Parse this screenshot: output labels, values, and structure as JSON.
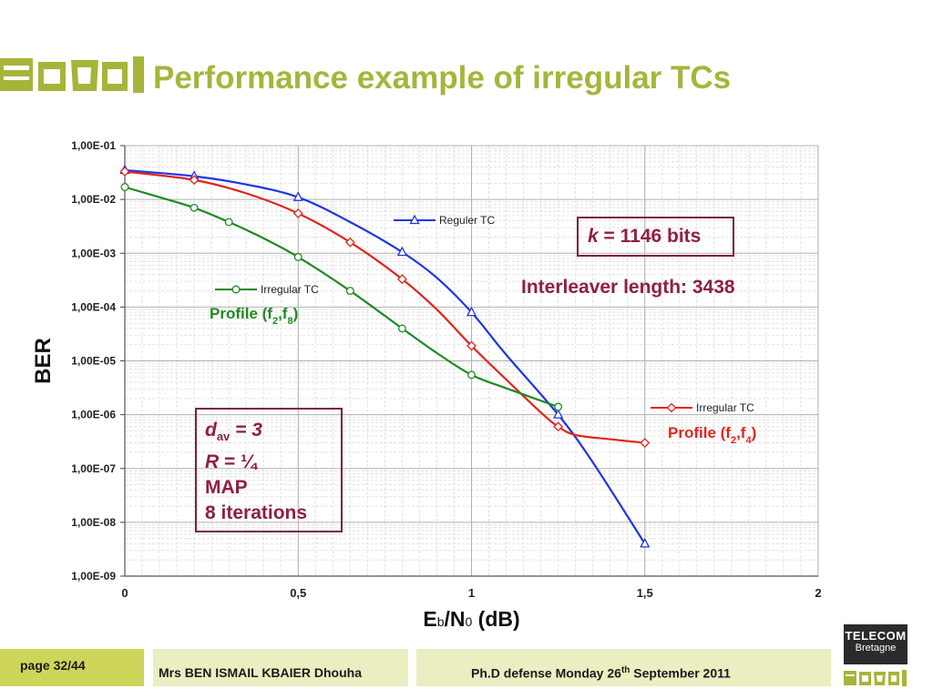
{
  "slide": {
    "title": "Performance example of irregular TCs",
    "annotations": {
      "k_symbol": "k",
      "k_text": " = 1146 bits",
      "interleaver": "Interleaver length: 3438",
      "d_symbol": "d",
      "d_sub": "av",
      "d_text": " = 3",
      "r_symbol": "R",
      "r_text": " = ¼",
      "algo": "MAP",
      "iterations": "8 iterations"
    },
    "footer": {
      "page_label": "page 32/44",
      "author": "Mrs BEN ISMAIL KBAIER Dhouha",
      "event_prefix": "Ph.D defense Monday 26",
      "event_sup": "th",
      "event_suffix": " September 2011"
    },
    "logo": {
      "telecom": "TELECOM",
      "bretagne": "Bretagne"
    },
    "colors": {
      "title": "#a6b53a",
      "annotation": "#8e1f45",
      "footer_dark": "#cdd65a",
      "footer_light": "#eaeec0"
    }
  },
  "chart_data": {
    "type": "line",
    "xlabel_main": "E",
    "xlabel_sub_b": "b",
    "xlabel_mid": "/N",
    "xlabel_sub_0": "0",
    "xlabel_unit": " (dB)",
    "ylabel": "BER",
    "xlim": [
      0,
      2
    ],
    "ylim": [
      1e-09,
      0.1
    ],
    "yscale": "log",
    "grid": true,
    "x_ticks": [
      "0",
      "0,5",
      "1",
      "1,5",
      "2"
    ],
    "x_tick_values": [
      0,
      0.5,
      1,
      1.5,
      2
    ],
    "y_ticks": [
      "1,00E-01",
      "1,00E-02",
      "1,00E-03",
      "1,00E-04",
      "1,00E-05",
      "1,00E-06",
      "1,00E-07",
      "1,00E-08",
      "1,00E-09"
    ],
    "y_tick_values": [
      0.1,
      0.01,
      0.001,
      0.0001,
      1e-05,
      1e-06,
      1e-07,
      1e-08,
      1e-09
    ],
    "series": [
      {
        "name": "Reguler TC",
        "color": "#1f35e6",
        "marker": "triangle",
        "x": [
          0,
          0.2,
          0.5,
          0.8,
          1.0,
          1.25,
          1.5
        ],
        "y": [
          0.035,
          0.027,
          0.011,
          0.00105,
          8e-05,
          1e-06,
          4e-09
        ],
        "line_x": [
          0,
          0.2,
          0.35,
          0.5,
          0.65,
          0.8,
          0.9,
          1.0,
          1.1,
          1.25,
          1.35,
          1.5
        ],
        "line_y": [
          0.035,
          0.027,
          0.019,
          0.011,
          0.0038,
          0.00105,
          0.00035,
          8e-05,
          1.3e-05,
          1e-06,
          1.3e-07,
          4e-09
        ]
      },
      {
        "name": "Irregular TC",
        "profile": "Profile (f2,f4)",
        "color": "#e3241c",
        "marker": "diamond",
        "x": [
          0,
          0.2,
          0.5,
          0.65,
          0.8,
          1.0,
          1.25,
          1.5
        ],
        "y": [
          0.033,
          0.023,
          0.0055,
          0.0016,
          0.00033,
          1.9e-05,
          6e-07,
          3e-07
        ],
        "line_x": [
          0,
          0.2,
          0.35,
          0.5,
          0.65,
          0.8,
          0.9,
          1.0,
          1.1,
          1.2,
          1.25,
          1.3,
          1.4,
          1.5
        ],
        "line_y": [
          0.033,
          0.023,
          0.013,
          0.0055,
          0.0016,
          0.00033,
          9e-05,
          1.9e-05,
          4.5e-06,
          1.1e-06,
          6e-07,
          4.2e-07,
          3.5e-07,
          3e-07
        ]
      },
      {
        "name": "Irregular TC",
        "profile": "Profile (f2,f8)",
        "color": "#1f8a22",
        "marker": "circle",
        "x": [
          0,
          0.2,
          0.3,
          0.5,
          0.65,
          0.8,
          1.0,
          1.25
        ],
        "y": [
          0.017,
          0.007,
          0.0038,
          0.00085,
          0.0002,
          4e-05,
          5.5e-06,
          1.4e-06
        ],
        "line_x": [
          0,
          0.1,
          0.2,
          0.3,
          0.4,
          0.5,
          0.65,
          0.8,
          0.9,
          1.0,
          1.1,
          1.25
        ],
        "line_y": [
          0.017,
          0.011,
          0.007,
          0.0038,
          0.0019,
          0.00085,
          0.0002,
          4e-05,
          1.4e-05,
          5.5e-06,
          3.1e-06,
          1.4e-06
        ]
      }
    ],
    "legend_labels": {
      "reguler": "Reguler TC",
      "irr_green": "Irregular TC",
      "irr_red": "Irregular TC",
      "profile_green_prefix": "Profile (f",
      "profile_green_s1": "2",
      "profile_green_mid": ",f",
      "profile_green_s2": "8",
      "profile_green_end": ")",
      "profile_red_prefix": "Profile (f",
      "profile_red_s1": "2",
      "profile_red_mid": ",f",
      "profile_red_s2": "4",
      "profile_red_end": ")"
    }
  }
}
